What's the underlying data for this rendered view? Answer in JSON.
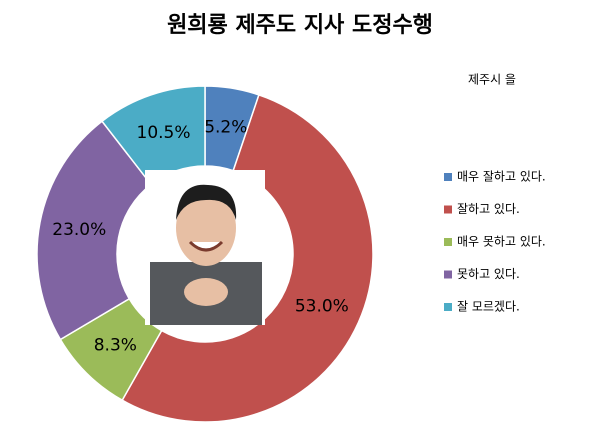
{
  "chart_data": {
    "type": "donut",
    "title": "원희룡 제주도 지사 도정수행",
    "legend_title": "제주시 을",
    "categories": [
      "매우 잘하고 있다.",
      "잘하고 있다.",
      "매우 못하고 있다.",
      "못하고 있다.",
      "잘 모르겠다."
    ],
    "values": [
      5.2,
      53.0,
      8.3,
      23.0,
      10.5
    ],
    "value_labels": [
      "5.2%",
      "53.0%",
      "8.3%",
      "23.0%",
      "10.5%"
    ],
    "colors": [
      "#4f81bd",
      "#c0504d",
      "#9bbb59",
      "#8064a2",
      "#4bacc6"
    ],
    "legend_position": "right"
  }
}
